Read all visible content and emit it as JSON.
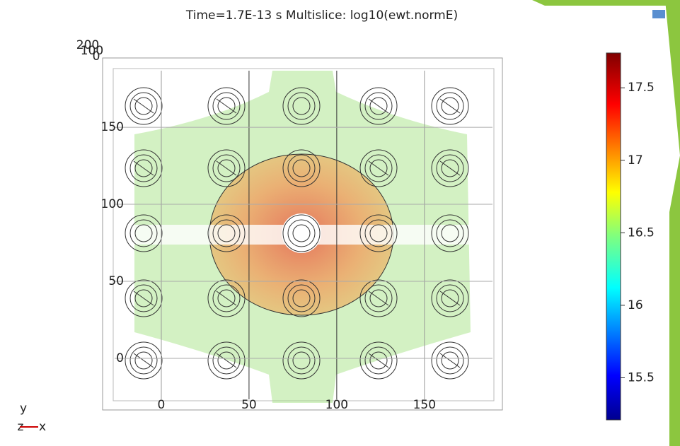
{
  "plot": {
    "title": "Time=1.7E-13 s   Multislice: log10(ewt.normE)",
    "depth_labels": [
      "200",
      "100",
      "0"
    ],
    "xlim": [
      -30,
      190
    ],
    "xticks": [
      0,
      50,
      100,
      150
    ],
    "ylim": [
      -30,
      195
    ],
    "yticks": [
      0,
      50,
      100,
      150
    ],
    "colorbar": {
      "lim": [
        15.21,
        17.74
      ],
      "ticks": [
        15.5,
        16,
        16.5,
        17,
        17.5
      ]
    },
    "triad": {
      "y": "y",
      "z": "z",
      "x": "x"
    }
  }
}
